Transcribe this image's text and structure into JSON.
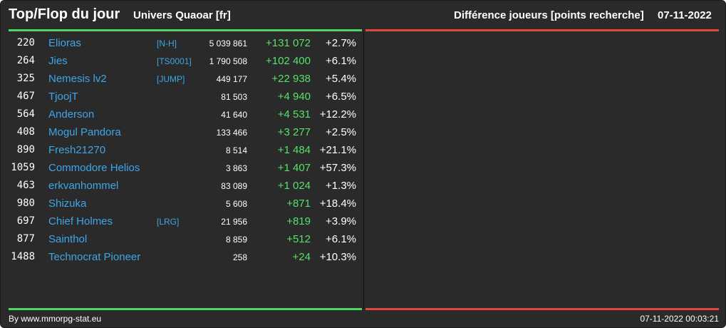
{
  "header": {
    "title": "Top/Flop du jour",
    "universe": "Univers Quaoar [fr]",
    "criteria": "Différence joueurs [points recherche]",
    "date": "07-11-2022"
  },
  "colors": {
    "positive": "#57e06a",
    "negative": "#e0463c",
    "link": "#3ea6e8",
    "background": "#2a2a2a"
  },
  "top_list": [
    {
      "rank": "220",
      "name": "Elioras",
      "alliance": "[N-H]",
      "points": "5 039 861",
      "diff": "+131 072",
      "pct": "+2.7%"
    },
    {
      "rank": "264",
      "name": "Jies",
      "alliance": "[TS0001]",
      "points": "1 790 508",
      "diff": "+102 400",
      "pct": "+6.1%"
    },
    {
      "rank": "325",
      "name": "Nemesis lv2",
      "alliance": "[JUMP]",
      "points": "449 177",
      "diff": "+22 938",
      "pct": "+5.4%"
    },
    {
      "rank": "467",
      "name": "TjoojT",
      "alliance": "",
      "points": "81 503",
      "diff": "+4 940",
      "pct": "+6.5%"
    },
    {
      "rank": "564",
      "name": "Anderson",
      "alliance": "",
      "points": "41 640",
      "diff": "+4 531",
      "pct": "+12.2%"
    },
    {
      "rank": "408",
      "name": "Mogul Pandora",
      "alliance": "",
      "points": "133 466",
      "diff": "+3 277",
      "pct": "+2.5%"
    },
    {
      "rank": "890",
      "name": "Fresh21270",
      "alliance": "",
      "points": "8 514",
      "diff": "+1 484",
      "pct": "+21.1%"
    },
    {
      "rank": "1059",
      "name": "Commodore Helios",
      "alliance": "",
      "points": "3 863",
      "diff": "+1 407",
      "pct": "+57.3%"
    },
    {
      "rank": "463",
      "name": "erkvanhommel",
      "alliance": "",
      "points": "83 089",
      "diff": "+1 024",
      "pct": "+1.3%"
    },
    {
      "rank": "980",
      "name": "Shizuka",
      "alliance": "",
      "points": "5 608",
      "diff": "+871",
      "pct": "+18.4%"
    },
    {
      "rank": "697",
      "name": "Chief Holmes",
      "alliance": "[LRG]",
      "points": "21 956",
      "diff": "+819",
      "pct": "+3.9%"
    },
    {
      "rank": "877",
      "name": "Sainthol",
      "alliance": "",
      "points": "8 859",
      "diff": "+512",
      "pct": "+6.1%"
    },
    {
      "rank": "1488",
      "name": "Technocrat Pioneer",
      "alliance": "",
      "points": "258",
      "diff": "+24",
      "pct": "+10.3%"
    }
  ],
  "flop_list": [],
  "footer": {
    "source": "By www.mmorpg-stat.eu",
    "generated": "07-11-2022 00:03:21"
  }
}
